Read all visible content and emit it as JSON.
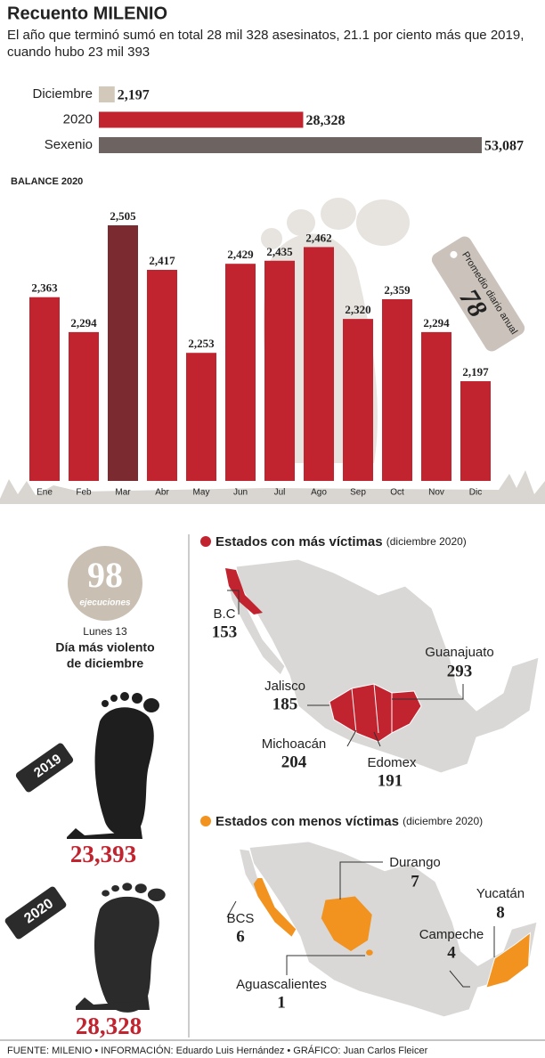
{
  "header": {
    "title": "Recuento MILENIO",
    "subtitle_lines": [
      "El año que terminó sumó en total 28 mil 328 asesinatos, 21.1 por ciento más que 2019,",
      "cuando hubo 23 mil 393"
    ]
  },
  "chart_data": [
    {
      "type": "bar",
      "orientation": "horizontal",
      "categories": [
        "Diciembre",
        "2020",
        "Sexenio"
      ],
      "values": [
        2197,
        28328,
        53087
      ],
      "value_labels": [
        "2,197",
        "28,328",
        "53,087"
      ],
      "colors": [
        "#d3c9ba",
        "#c1232f",
        "#6d6462"
      ]
    },
    {
      "type": "bar",
      "title": "BALANCE 2020",
      "categories": [
        "Ene",
        "Feb",
        "Mar",
        "Abr",
        "May",
        "Jun",
        "Jul",
        "Ago",
        "Sep",
        "Oct",
        "Nov",
        "Dic"
      ],
      "values": [
        2363,
        2294,
        2505,
        2417,
        2253,
        2429,
        2435,
        2462,
        2320,
        2359,
        2294,
        2197
      ],
      "value_labels": [
        "2,363",
        "2,294",
        "2,505",
        "2,417",
        "2,253",
        "2,429",
        "2,435",
        "2,462",
        "2,320",
        "2,359",
        "2,294",
        "2,197"
      ],
      "colors": [
        "#c1232f",
        "#c1232f",
        "#7b2a30",
        "#c1232f",
        "#c1232f",
        "#c1232f",
        "#c1232f",
        "#c1232f",
        "#c1232f",
        "#c1232f",
        "#c1232f",
        "#c1232f"
      ],
      "ylim": [
        2000,
        2600
      ],
      "annotation": {
        "label": "Promedio diario anual",
        "value": 78
      }
    }
  ],
  "ejecuciones": {
    "value": 98,
    "label": "ejecuciones",
    "date": "Lunes 13",
    "caption_lines": [
      "Día más violento",
      "de diciembre"
    ]
  },
  "totals": [
    {
      "year": "2019",
      "value": "23,393"
    },
    {
      "year": "2020",
      "value": "28,328"
    }
  ],
  "maps": [
    {
      "title": "Estados con más víctimas",
      "note": "(diciembre 2020)",
      "states": [
        {
          "name": "B.C",
          "value": 153
        },
        {
          "name": "Guanajuato",
          "value": 293
        },
        {
          "name": "Jalisco",
          "value": 185
        },
        {
          "name": "Michoacán",
          "value": 204
        },
        {
          "name": "Edomex",
          "value": 191
        }
      ]
    },
    {
      "title": "Estados con menos víctimas",
      "note": "(diciembre 2020)",
      "states": [
        {
          "name": "Durango",
          "value": 7
        },
        {
          "name": "BCS",
          "value": 6
        },
        {
          "name": "Yucatán",
          "value": 8
        },
        {
          "name": "Campeche",
          "value": 4
        },
        {
          "name": "Aguascalientes",
          "value": 1
        }
      ]
    }
  ],
  "footer": "FUENTE: MILENIO • INFORMACIÓN: Eduardo Luis Hernández • GRÁFICO: Juan Carlos Fleicer"
}
